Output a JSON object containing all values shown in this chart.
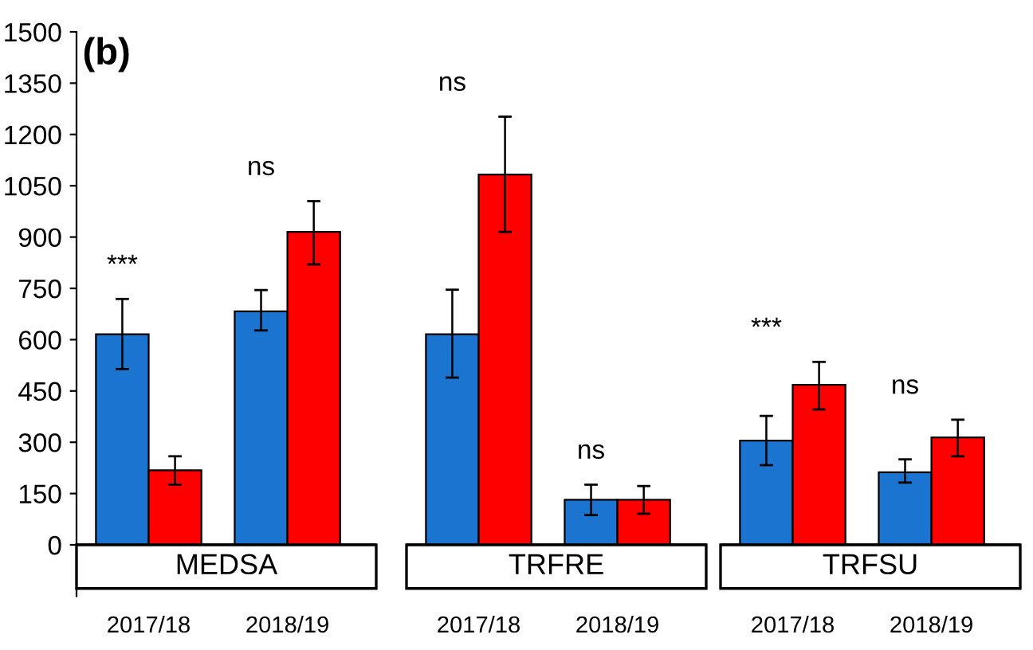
{
  "chart_data": [
    {
      "type": "bar",
      "title": "MEDSA",
      "categories": [
        "2017/18",
        "2018/19"
      ],
      "ylim": [
        0,
        1500
      ],
      "yticks": [
        0,
        150,
        300,
        450,
        600,
        750,
        900,
        1050,
        1200,
        1350,
        1500
      ],
      "grid": false,
      "legend": false,
      "series": [
        {
          "color": "#1b75d0",
          "values": [
            616,
            683
          ],
          "errors": [
            [
              514,
              719
            ],
            [
              627,
              745
            ]
          ]
        },
        {
          "color": "#ff0000",
          "values": [
            218,
            915
          ],
          "errors": [
            [
              176,
              259
            ],
            [
              820,
              1005
            ]
          ]
        }
      ],
      "subtitle": "(b)",
      "annotations": [
        "***",
        "ns"
      ]
    },
    {
      "type": "bar",
      "title": "TRFRE",
      "categories": [
        "2017/18",
        "2018/19"
      ],
      "ylim": [
        0,
        1500
      ],
      "tick_labels": "x",
      "grid": false,
      "legend": false,
      "series": [
        {
          "color": "#1b75d0",
          "values": [
            616,
            132
          ],
          "errors": [
            [
              489,
              746
            ],
            [
              87,
              176
            ]
          ]
        },
        {
          "color": "#ff0000",
          "values": [
            1083,
            132
          ],
          "errors": [
            [
              915,
              1252
            ],
            [
              91,
              172
            ]
          ]
        }
      ],
      "annotations": [
        "ns",
        "ns"
      ]
    },
    {
      "type": "bar",
      "title": "TRFSU",
      "categories": [
        "2017/18",
        "2018/19"
      ],
      "ylim": [
        0,
        1500
      ],
      "tick_labels": "x",
      "grid": false,
      "legend": false,
      "series": [
        {
          "color": "#1b75d0",
          "values": [
            305,
            212
          ],
          "errors": [
            [
              233,
              377
            ],
            [
              182,
              250
            ]
          ]
        },
        {
          "color": "#ff0000",
          "values": [
            468,
            314
          ],
          "errors": [
            [
              396,
              535
            ],
            [
              259,
              366
            ]
          ]
        }
      ],
      "annotations": [
        "***",
        "ns"
      ]
    }
  ]
}
